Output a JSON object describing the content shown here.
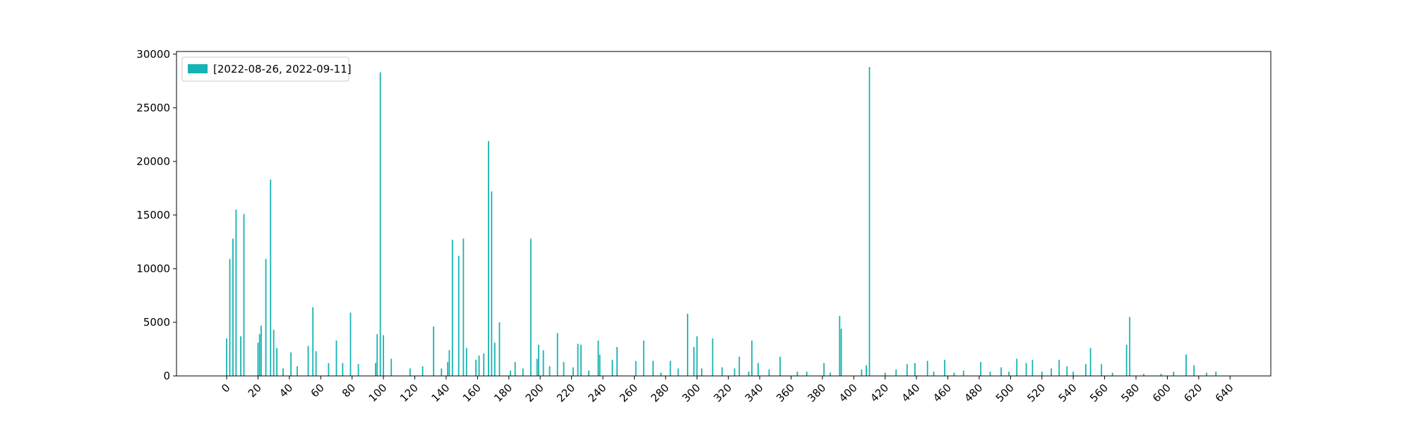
{
  "chart_data": {
    "type": "bar",
    "legend": "upper left",
    "grid": false,
    "series": [
      {
        "name": "[2022-08-26, 2022-09-11]",
        "color": "#17b3b3",
        "x": [
          0,
          2,
          4,
          6,
          9,
          11,
          20,
          21,
          22,
          25,
          28,
          30,
          32,
          36,
          41,
          45,
          52,
          55,
          57,
          65,
          70,
          74,
          79,
          84,
          95,
          96,
          98,
          100,
          105,
          117,
          125,
          132,
          137,
          141,
          142,
          144,
          148,
          151,
          153,
          159,
          161,
          164,
          167,
          169,
          171,
          174,
          181,
          184,
          189,
          194,
          198,
          199,
          202,
          206,
          211,
          215,
          221,
          224,
          226,
          231,
          237,
          238,
          246,
          249,
          261,
          266,
          272,
          277,
          283,
          288,
          294,
          298,
          300,
          303,
          310,
          316,
          324,
          327,
          333,
          335,
          339,
          346,
          353,
          364,
          370,
          381,
          385,
          391,
          392,
          405,
          408,
          410,
          420,
          427,
          434,
          439,
          447,
          451,
          458,
          464,
          470,
          481,
          487,
          494,
          499,
          504,
          510,
          514,
          520,
          526,
          531,
          536,
          540,
          548,
          551,
          558,
          565,
          574,
          576,
          585,
          596,
          604,
          612,
          617,
          625,
          631
        ],
        "values": [
          3500,
          10900,
          12800,
          15500,
          3700,
          15100,
          3100,
          3900,
          4700,
          10900,
          18300,
          4300,
          2600,
          700,
          2200,
          900,
          2800,
          6400,
          2300,
          1200,
          3300,
          1200,
          5900,
          1100,
          1200,
          3900,
          28300,
          3800,
          1600,
          700,
          900,
          4600,
          700,
          1300,
          2400,
          12700,
          11200,
          12800,
          2600,
          1500,
          1900,
          2100,
          21900,
          17200,
          3100,
          5000,
          500,
          1300,
          700,
          12800,
          1600,
          2900,
          2400,
          900,
          4000,
          1300,
          800,
          3000,
          2900,
          500,
          3300,
          2000,
          1500,
          2700,
          1400,
          3300,
          1400,
          300,
          1400,
          700,
          5800,
          2700,
          3700,
          700,
          3500,
          800,
          700,
          1800,
          400,
          3300,
          1200,
          600,
          1800,
          400,
          400,
          1200,
          300,
          5600,
          4400,
          600,
          1000,
          28800,
          300,
          600,
          1100,
          1200,
          1400,
          400,
          1500,
          300,
          500,
          1300,
          400,
          800,
          400,
          1600,
          1200,
          1500,
          400,
          700,
          1500,
          900,
          400,
          1100,
          2600,
          1100,
          300,
          2900,
          5500,
          200,
          200,
          400,
          2000,
          1000,
          300,
          400
        ]
      }
    ],
    "xlim": [
      -32,
      666
    ],
    "xticks": [
      0,
      20,
      40,
      60,
      80,
      100,
      120,
      140,
      160,
      180,
      200,
      220,
      240,
      260,
      280,
      300,
      320,
      340,
      360,
      380,
      400,
      420,
      440,
      460,
      480,
      500,
      520,
      540,
      560,
      580,
      600,
      620,
      640
    ],
    "ylim": [
      0,
      30250
    ],
    "yticks": [
      0,
      5000,
      10000,
      15000,
      20000,
      25000,
      30000
    ]
  }
}
